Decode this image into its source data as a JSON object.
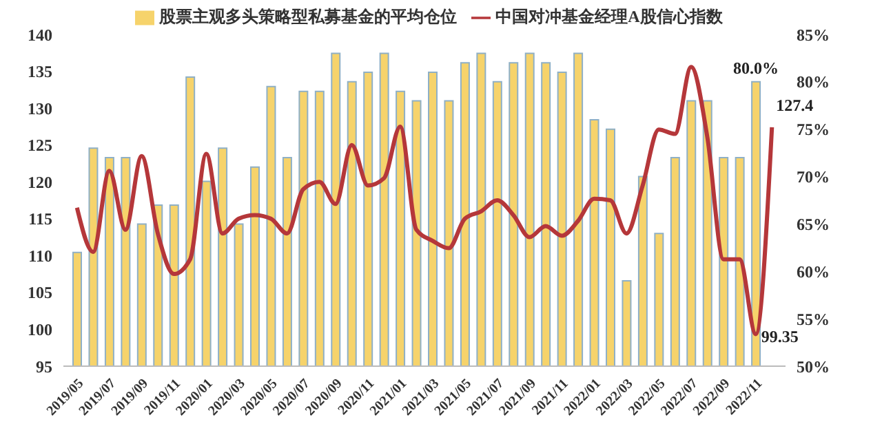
{
  "chart_data": {
    "type": "bar",
    "categories": [
      "2019/05",
      null,
      "2019/07",
      null,
      "2019/09",
      null,
      "2019/11",
      null,
      "2020/01",
      null,
      "2020/03",
      null,
      "2020/05",
      null,
      "2020/07",
      null,
      "2020/09",
      null,
      "2020/11",
      null,
      "2021/01",
      null,
      "2021/03",
      null,
      "2021/05",
      null,
      "2021/07",
      null,
      "2021/09",
      null,
      "2021/11",
      null,
      "2022/01",
      null,
      "2022/03",
      null,
      "2022/05",
      null,
      "2022/07",
      null,
      "2022/09",
      null,
      "2022/11",
      null
    ],
    "series": [
      {
        "name": "股票主观多头策略型私募基金的平均仓位",
        "axis": "y2",
        "color": "#f6d36b",
        "values": [
          62,
          73,
          72,
          72,
          65,
          67,
          67,
          80.5,
          69.5,
          73,
          65,
          71,
          79.5,
          72,
          79,
          79,
          83,
          80,
          81,
          83,
          79,
          78,
          81,
          78,
          82,
          83,
          80,
          82,
          83,
          82,
          81,
          83,
          76,
          75,
          59,
          70,
          64,
          72,
          78,
          78,
          72,
          72,
          80,
          null
        ],
        "value_labels": [
          null,
          null,
          null,
          null,
          null,
          null,
          null,
          null,
          null,
          null,
          null,
          null,
          null,
          null,
          null,
          null,
          null,
          null,
          null,
          null,
          null,
          null,
          null,
          null,
          null,
          null,
          null,
          null,
          null,
          null,
          null,
          null,
          null,
          null,
          null,
          null,
          null,
          null,
          null,
          null,
          null,
          null,
          "80.0%",
          null
        ]
      },
      {
        "name": "中国对冲基金经理A股信心指数",
        "type": "line",
        "color": "#b5373a",
        "values": [
          116.5,
          110.5,
          121.5,
          113.5,
          123.5,
          113,
          107.5,
          109.5,
          123.8,
          113,
          115,
          115.5,
          115,
          113,
          119,
          120,
          117,
          125,
          119.5,
          120.5,
          127.5,
          113.5,
          112,
          111,
          115,
          116,
          117.5,
          115.5,
          112.5,
          114,
          112.7,
          114.7,
          117.7,
          117.5,
          113,
          119.5,
          127.1,
          126.5,
          135.6,
          126.1,
          109.5,
          109.5,
          99.35,
          127.4
        ],
        "value_labels": [
          null,
          null,
          null,
          null,
          null,
          null,
          null,
          null,
          null,
          null,
          null,
          null,
          null,
          null,
          null,
          null,
          null,
          null,
          null,
          null,
          null,
          null,
          null,
          null,
          null,
          null,
          null,
          null,
          null,
          null,
          null,
          null,
          null,
          null,
          null,
          null,
          null,
          null,
          null,
          null,
          null,
          null,
          "99.35",
          "127.4"
        ]
      }
    ],
    "ylim": [
      95,
      140
    ],
    "yticks": [
      95,
      100,
      105,
      110,
      115,
      120,
      125,
      130,
      135,
      140
    ],
    "y2lim": [
      50,
      85
    ],
    "y2ticks": [
      {
        "value": 50,
        "label": "50%"
      },
      {
        "value": 55,
        "label": "55%"
      },
      {
        "value": 60,
        "label": "60%"
      },
      {
        "value": 65,
        "label": "65%"
      },
      {
        "value": 70,
        "label": "70%"
      },
      {
        "value": 75,
        "label": "75%"
      },
      {
        "value": 80,
        "label": "80%"
      },
      {
        "value": 85,
        "label": "85%"
      }
    ],
    "grid": false,
    "legend": "top"
  }
}
